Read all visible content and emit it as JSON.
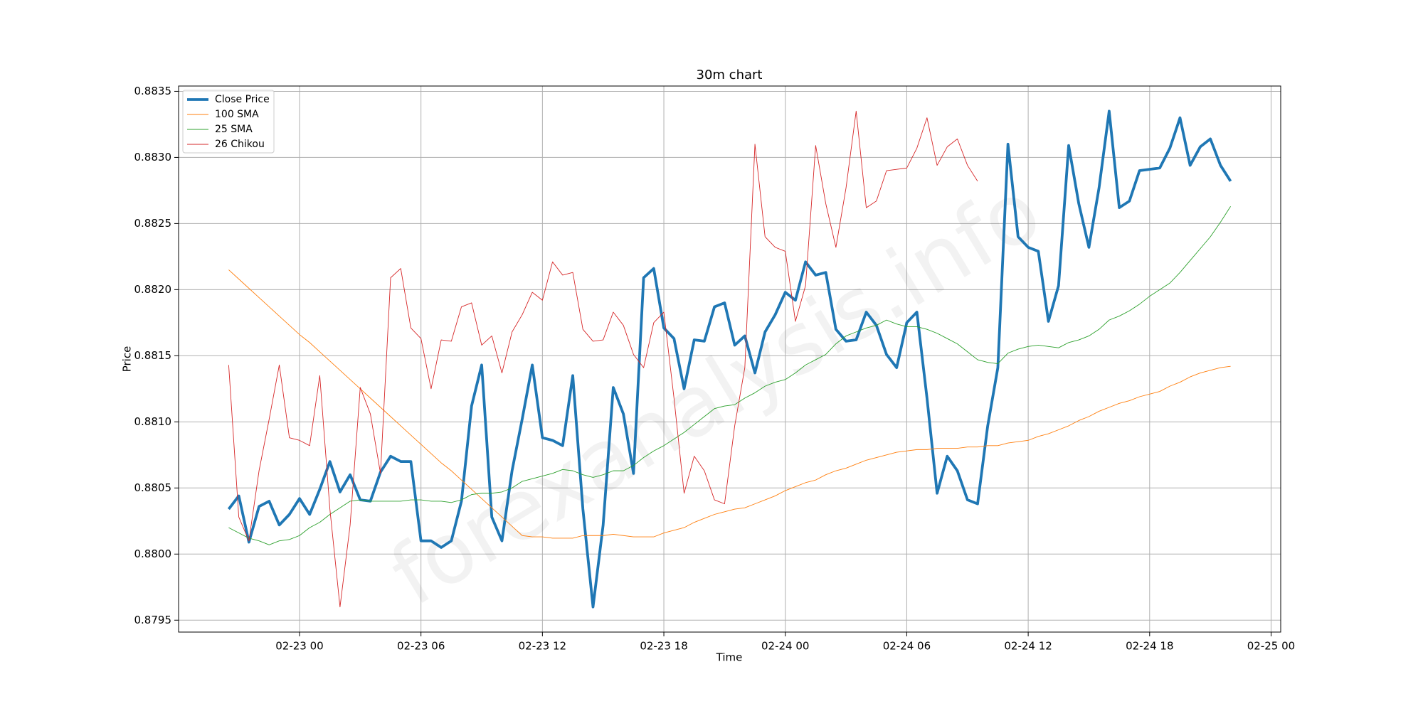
{
  "chart_data": {
    "type": "line",
    "title": "30m chart",
    "x_label": "Time",
    "y_label": "Price",
    "watermark": "forexanalysis.info",
    "x": [
      -3.5,
      -3,
      -2.5,
      -2,
      -1.5,
      -1,
      -0.5,
      0,
      0.5,
      1,
      1.5,
      2,
      2.5,
      3,
      3.5,
      4,
      4.5,
      5,
      5.5,
      6,
      6.5,
      7,
      7.5,
      8,
      8.5,
      9,
      9.5,
      10,
      10.5,
      11,
      11.5,
      12,
      12.5,
      13,
      13.5,
      14,
      14.5,
      15,
      15.5,
      16,
      16.5,
      17,
      17.5,
      18,
      18.5,
      19,
      19.5,
      20,
      20.5,
      21,
      21.5,
      22,
      22.5,
      23,
      23.5,
      24,
      24.5,
      25,
      25.5,
      26,
      26.5,
      27,
      27.5,
      28,
      28.5,
      29,
      29.5,
      30,
      30.5,
      31,
      31.5,
      32,
      32.5,
      33,
      33.5,
      34,
      34.5,
      35,
      35.5,
      36,
      36.5,
      37,
      37.5,
      38,
      38.5,
      39,
      39.5,
      40,
      40.5,
      41,
      41.5,
      42,
      42.5,
      43,
      43.5,
      44,
      44.5,
      45,
      45.5,
      46
    ],
    "xlim": [
      -5.975,
      48.475
    ],
    "xticks": [
      {
        "value": 0,
        "label": "02-23 00"
      },
      {
        "value": 6,
        "label": "02-23 06"
      },
      {
        "value": 12,
        "label": "02-23 12"
      },
      {
        "value": 18,
        "label": "02-23 18"
      },
      {
        "value": 24,
        "label": "02-24 00"
      },
      {
        "value": 30,
        "label": "02-24 06"
      },
      {
        "value": 36,
        "label": "02-24 12"
      },
      {
        "value": 42,
        "label": "02-24 18"
      },
      {
        "value": 48,
        "label": "02-25 00"
      }
    ],
    "ylim": [
      0.87941,
      0.88354
    ],
    "yticks": [
      0.8795,
      {
        "value": 0.88,
        "label": "0.8800"
      },
      0.8805,
      {
        "value": 0.881,
        "label": "0.8810"
      },
      0.8815,
      {
        "value": 0.882,
        "label": "0.8820"
      },
      0.8825,
      {
        "value": 0.883,
        "label": "0.8830"
      },
      0.8835
    ],
    "grid": true,
    "legend": "upper left",
    "series": [
      {
        "name": "Close Price",
        "color": "#1f77b4",
        "width": 3.8,
        "values": [
          0.88034,
          0.88044,
          0.88009,
          0.88036,
          0.8804,
          0.88022,
          0.8803,
          0.88042,
          0.8803,
          0.88049,
          0.8807,
          0.88047,
          0.8806,
          0.88041,
          0.8804,
          0.88062,
          0.88074,
          0.8807,
          0.8807,
          0.8801,
          0.8801,
          0.88005,
          0.8801,
          0.8804,
          0.88112,
          0.88143,
          0.88028,
          0.8801,
          0.88063,
          0.88102,
          0.88143,
          0.88088,
          0.88086,
          0.88082,
          0.88135,
          0.88034,
          0.8796,
          0.88022,
          0.88126,
          0.88106,
          0.88061,
          0.88209,
          0.88216,
          0.88171,
          0.88163,
          0.88125,
          0.88162,
          0.88161,
          0.88187,
          0.8819,
          0.88158,
          0.88165,
          0.88137,
          0.88168,
          0.88181,
          0.88198,
          0.88192,
          0.88221,
          0.88211,
          0.88213,
          0.8817,
          0.88161,
          0.88162,
          0.88183,
          0.88173,
          0.88151,
          0.88141,
          0.88175,
          0.88183,
          0.88118,
          0.88046,
          0.88074,
          0.88063,
          0.88041,
          0.88038,
          0.88097,
          0.88141,
          0.8831,
          0.8824,
          0.88232,
          0.88229,
          0.88176,
          0.88203,
          0.88309,
          0.88265,
          0.88232,
          0.88277,
          0.88335,
          0.88262,
          0.88267,
          0.8829,
          0.88291,
          0.88292,
          0.88307,
          0.8833,
          0.88294,
          0.88308,
          0.88314,
          0.88294,
          0.88282
        ]
      },
      {
        "name": "100 SMA",
        "color": "#ff7f0e",
        "width": 0.9,
        "values": [
          0.88215,
          0.88208,
          0.88201,
          0.88194,
          0.88187,
          0.8818,
          0.88173,
          0.88166,
          0.8816,
          0.88153,
          0.88146,
          0.88139,
          0.88132,
          0.88125,
          0.88118,
          0.88111,
          0.88104,
          0.88097,
          0.8809,
          0.88083,
          0.88076,
          0.88069,
          0.88063,
          0.88056,
          0.88049,
          0.88042,
          0.88035,
          0.88028,
          0.88021,
          0.88014,
          0.88013,
          0.88013,
          0.88012,
          0.88012,
          0.88012,
          0.88014,
          0.88014,
          0.88014,
          0.88015,
          0.88014,
          0.88013,
          0.88013,
          0.88013,
          0.88016,
          0.88018,
          0.8802,
          0.88024,
          0.88027,
          0.8803,
          0.88032,
          0.88034,
          0.88035,
          0.88038,
          0.88041,
          0.88044,
          0.88048,
          0.88051,
          0.88054,
          0.88056,
          0.8806,
          0.88063,
          0.88065,
          0.88068,
          0.88071,
          0.88073,
          0.88075,
          0.88077,
          0.88078,
          0.88079,
          0.88079,
          0.8808,
          0.8808,
          0.8808,
          0.88081,
          0.88081,
          0.88082,
          0.88082,
          0.88084,
          0.88085,
          0.88086,
          0.88089,
          0.88091,
          0.88094,
          0.88097,
          0.88101,
          0.88104,
          0.88108,
          0.88111,
          0.88114,
          0.88116,
          0.88119,
          0.88121,
          0.88123,
          0.88127,
          0.8813,
          0.88134,
          0.88137,
          0.88139,
          0.88141,
          0.88142
        ]
      },
      {
        "name": "25 SMA",
        "color": "#2ca02c",
        "width": 0.9,
        "values": [
          0.8802,
          0.88016,
          0.88012,
          0.8801,
          0.88007,
          0.8801,
          0.88011,
          0.88014,
          0.8802,
          0.88024,
          0.8803,
          0.88035,
          0.8804,
          0.88041,
          0.8804,
          0.8804,
          0.8804,
          0.8804,
          0.88041,
          0.88041,
          0.8804,
          0.8804,
          0.88039,
          0.88041,
          0.88045,
          0.88046,
          0.88046,
          0.88047,
          0.8805,
          0.88055,
          0.88057,
          0.88059,
          0.88061,
          0.88064,
          0.88063,
          0.8806,
          0.88058,
          0.8806,
          0.88063,
          0.88063,
          0.88067,
          0.88073,
          0.88078,
          0.88082,
          0.88087,
          0.88092,
          0.88098,
          0.88104,
          0.8811,
          0.88112,
          0.88113,
          0.88118,
          0.88122,
          0.88127,
          0.8813,
          0.88132,
          0.88137,
          0.88143,
          0.88147,
          0.88151,
          0.88159,
          0.88165,
          0.88168,
          0.88171,
          0.88173,
          0.88177,
          0.88174,
          0.88172,
          0.88172,
          0.8817,
          0.88167,
          0.88163,
          0.88159,
          0.88153,
          0.88147,
          0.88145,
          0.88144,
          0.88152,
          0.88155,
          0.88157,
          0.88158,
          0.88157,
          0.88156,
          0.8816,
          0.88162,
          0.88165,
          0.8817,
          0.88177,
          0.8818,
          0.88184,
          0.88189,
          0.88195,
          0.882,
          0.88205,
          0.88213,
          0.88222,
          0.88231,
          0.8824,
          0.88251,
          0.88263
        ]
      },
      {
        "name": "26 Chikou",
        "color": "#d62728",
        "width": 0.9,
        "values": [
          0.88143,
          0.88028,
          0.8801,
          0.88063,
          0.88102,
          0.88143,
          0.88088,
          0.88086,
          0.88082,
          0.88135,
          0.88034,
          0.8796,
          0.88022,
          0.88126,
          0.88106,
          0.88061,
          0.88209,
          0.88216,
          0.88171,
          0.88163,
          0.88125,
          0.88162,
          0.88161,
          0.88187,
          0.8819,
          0.88158,
          0.88165,
          0.88137,
          0.88168,
          0.88181,
          0.88198,
          0.88192,
          0.88221,
          0.88211,
          0.88213,
          0.8817,
          0.88161,
          0.88162,
          0.88183,
          0.88173,
          0.88151,
          0.88141,
          0.88175,
          0.88183,
          0.88118,
          0.88046,
          0.88074,
          0.88063,
          0.88041,
          0.88038,
          0.88097,
          0.88141,
          0.8831,
          0.8824,
          0.88232,
          0.88229,
          0.88176,
          0.88203,
          0.88309,
          0.88265,
          0.88232,
          0.88277,
          0.88335,
          0.88262,
          0.88267,
          0.8829,
          0.88291,
          0.88292,
          0.88307,
          0.8833,
          0.88294,
          0.88308,
          0.88314,
          0.88294,
          0.88282,
          null,
          null,
          null,
          null,
          null,
          null,
          null,
          null,
          null,
          null,
          null,
          null,
          null,
          null,
          null,
          null,
          null,
          null,
          null,
          null,
          null,
          null,
          null,
          null,
          null
        ]
      }
    ]
  }
}
